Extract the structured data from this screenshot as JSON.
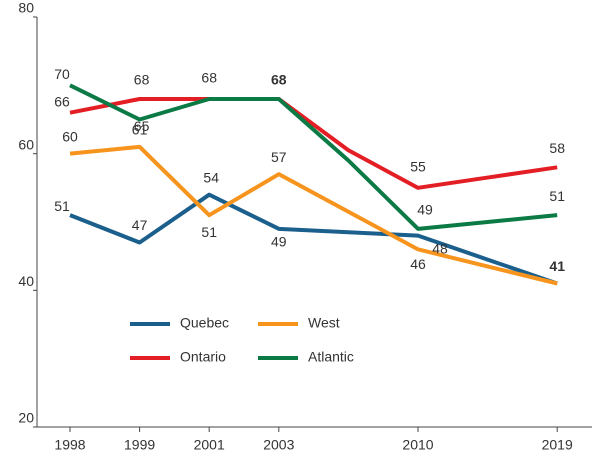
{
  "chart_data": {
    "type": "line",
    "categories": [
      "1998",
      "1999",
      "2001",
      "2003",
      null,
      "2010",
      null,
      "2019"
    ],
    "series": [
      {
        "name": "Quebec",
        "color": "#1b5f8c",
        "values": [
          51,
          47,
          54,
          49,
          48.5,
          48,
          44.5,
          41
        ],
        "value_labels": [
          "51",
          "47",
          "54",
          "49",
          null,
          "48",
          null,
          "41"
        ]
      },
      {
        "name": "West",
        "color": "#f7941d",
        "values": [
          60,
          61,
          51,
          57,
          51.5,
          46,
          43.5,
          41
        ],
        "value_labels": [
          "60",
          "61",
          "51",
          "57",
          null,
          "46",
          null,
          null
        ]
      },
      {
        "name": "Ontario",
        "color": "#e31e24",
        "values": [
          66,
          68,
          68,
          68,
          60.5,
          55,
          56.5,
          58
        ],
        "value_labels": [
          "66",
          "68",
          "68",
          "68",
          null,
          "55",
          null,
          "58"
        ]
      },
      {
        "name": "Atlantic",
        "color": "#0b7a45",
        "values": [
          70,
          65,
          68,
          68,
          59,
          49,
          50,
          51
        ],
        "value_labels": [
          "70",
          "65",
          null,
          null,
          null,
          "49",
          null,
          "51"
        ]
      }
    ],
    "ylim": [
      20,
      80
    ],
    "yticks": [
      20,
      40,
      60,
      80
    ]
  }
}
